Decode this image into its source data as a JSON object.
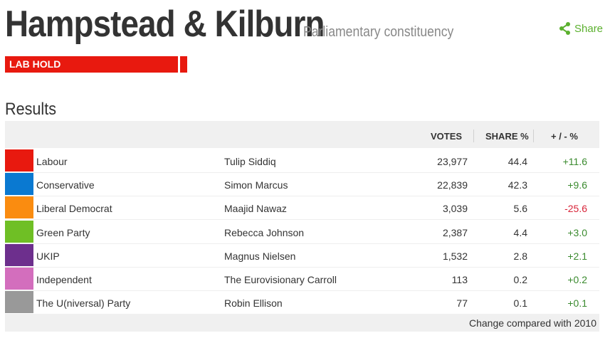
{
  "header": {
    "title": "Hampstead & Kilburn",
    "subtitle": "Parliamentary constituency",
    "share_label": "Share",
    "result_badge": "LAB HOLD"
  },
  "results": {
    "heading": "Results",
    "columns": {
      "votes": "VOTES",
      "share": "SHARE %",
      "change": "+ / - %"
    },
    "rows": [
      {
        "party": "Labour",
        "candidate": "Tulip Siddiq",
        "votes": "23,977",
        "share": "44.4",
        "change": "+11.6",
        "color": "#e8190f"
      },
      {
        "party": "Conservative",
        "candidate": "Simon Marcus",
        "votes": "22,839",
        "share": "42.3",
        "change": "+9.6",
        "color": "#0a79d1"
      },
      {
        "party": "Liberal Democrat",
        "candidate": "Maajid Nawaz",
        "votes": "3,039",
        "share": "5.6",
        "change": "-25.6",
        "color": "#fa8c10"
      },
      {
        "party": "Green Party",
        "candidate": "Rebecca Johnson",
        "votes": "2,387",
        "share": "4.4",
        "change": "+3.0",
        "color": "#6fbf25"
      },
      {
        "party": "UKIP",
        "candidate": "Magnus Nielsen",
        "votes": "1,532",
        "share": "2.8",
        "change": "+2.1",
        "color": "#6d2f8d"
      },
      {
        "party": "Independent",
        "candidate": "The Eurovisionary Carroll",
        "votes": "113",
        "share": "0.2",
        "change": "+0.2",
        "color": "#d36ebd"
      },
      {
        "party": "The U(niversal) Party",
        "candidate": "Robin Ellison",
        "votes": "77",
        "share": "0.1",
        "change": "+0.1",
        "color": "#999999"
      }
    ],
    "footnote": "Change compared with 2010"
  },
  "colors": {
    "positive": "#3a8a2e",
    "negative": "#d8253a",
    "share": "#5bb02e"
  }
}
